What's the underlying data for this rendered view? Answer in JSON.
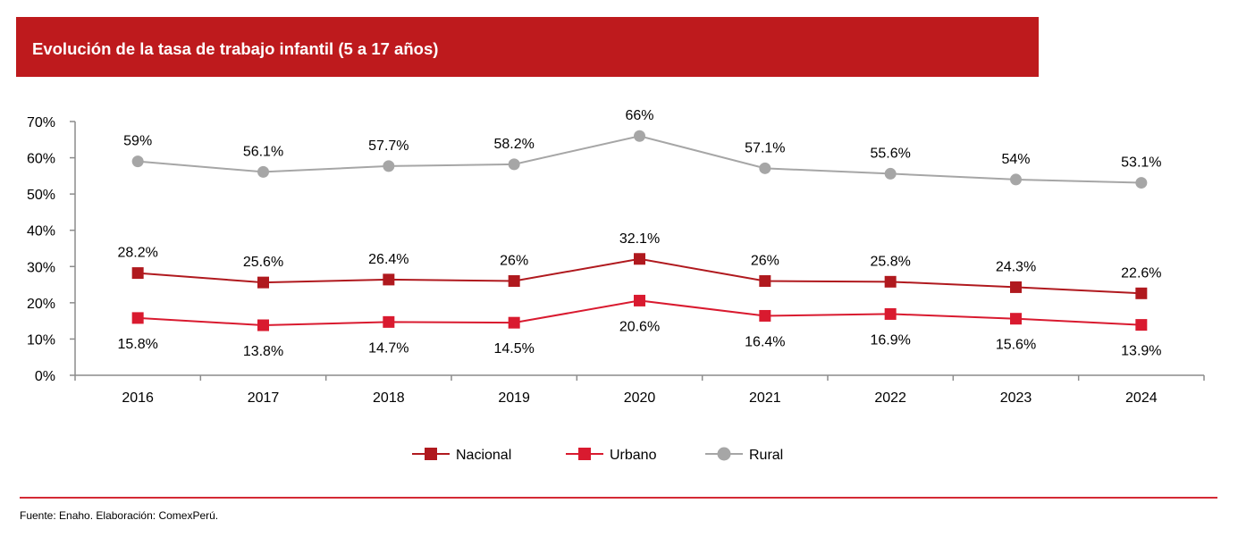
{
  "header": {
    "title": "Evolución de la tasa de trabajo infantil (5 a 17 años)"
  },
  "footer": {
    "source": "Fuente: Enaho. Elaboración: ComexPerú."
  },
  "chart_data": {
    "type": "line",
    "title": "Evolución de la tasa de trabajo infantil (5 a 17 años)",
    "xlabel": "",
    "ylabel": "",
    "categories": [
      "2016",
      "2017",
      "2018",
      "2019",
      "2020",
      "2021",
      "2022",
      "2023",
      "2024"
    ],
    "ylim": [
      0,
      70
    ],
    "yticks": [
      0,
      10,
      20,
      30,
      40,
      50,
      60,
      70
    ],
    "ytick_labels": [
      "0%",
      "10%",
      "20%",
      "30%",
      "40%",
      "50%",
      "60%",
      "70%"
    ],
    "grid": false,
    "legend_position": "bottom",
    "series": [
      {
        "name": "Nacional",
        "color": "#B0191E",
        "marker": "square",
        "label_position": "above",
        "values": [
          28.2,
          25.6,
          26.4,
          26,
          32.1,
          26,
          25.8,
          24.3,
          22.6
        ],
        "labels": [
          "28.2%",
          "25.6%",
          "26.4%",
          "26%",
          "32.1%",
          "26%",
          "25.8%",
          "24.3%",
          "22.6%"
        ]
      },
      {
        "name": "Urbano",
        "color": "#D91A2F",
        "marker": "square",
        "label_position": "below",
        "values": [
          15.8,
          13.8,
          14.7,
          14.5,
          20.6,
          16.4,
          16.9,
          15.6,
          13.9
        ],
        "labels": [
          "15.8%",
          "13.8%",
          "14.7%",
          "14.5%",
          "20.6%",
          "16.4%",
          "16.9%",
          "15.6%",
          "13.9%"
        ]
      },
      {
        "name": "Rural",
        "color": "#A6A6A6",
        "marker": "circle",
        "label_position": "above",
        "values": [
          59,
          56.1,
          57.7,
          58.2,
          66,
          57.1,
          55.6,
          54,
          53.1
        ],
        "labels": [
          "59%",
          "56.1%",
          "57.7%",
          "58.2%",
          "66%",
          "57.1%",
          "55.6%",
          "54%",
          "53.1%"
        ]
      }
    ]
  }
}
